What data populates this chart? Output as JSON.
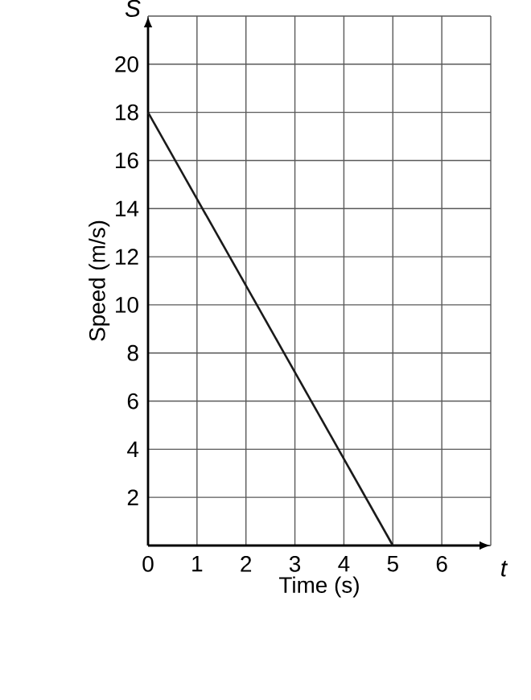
{
  "chart_data": {
    "type": "line",
    "xlabel": "Time (s)",
    "ylabel": "Speed (m/s)",
    "annotations": [
      "S",
      "t"
    ],
    "x": [
      0,
      5
    ],
    "series": [
      {
        "color": "#1a1a1a",
        "values": [
          18,
          0
        ]
      }
    ],
    "xlim": [
      0,
      7
    ],
    "ylim": [
      0,
      22
    ],
    "xticks": [
      0,
      1,
      2,
      3,
      4,
      5,
      6,
      {
        "value": 7,
        "label": null
      }
    ],
    "yticks": [
      {
        "value": 0,
        "label": null
      },
      2,
      4,
      6,
      8,
      10,
      12,
      14,
      16,
      18,
      20,
      {
        "value": 22,
        "label": null
      }
    ],
    "grid": true,
    "marker": "none",
    "line_style": "solid"
  }
}
